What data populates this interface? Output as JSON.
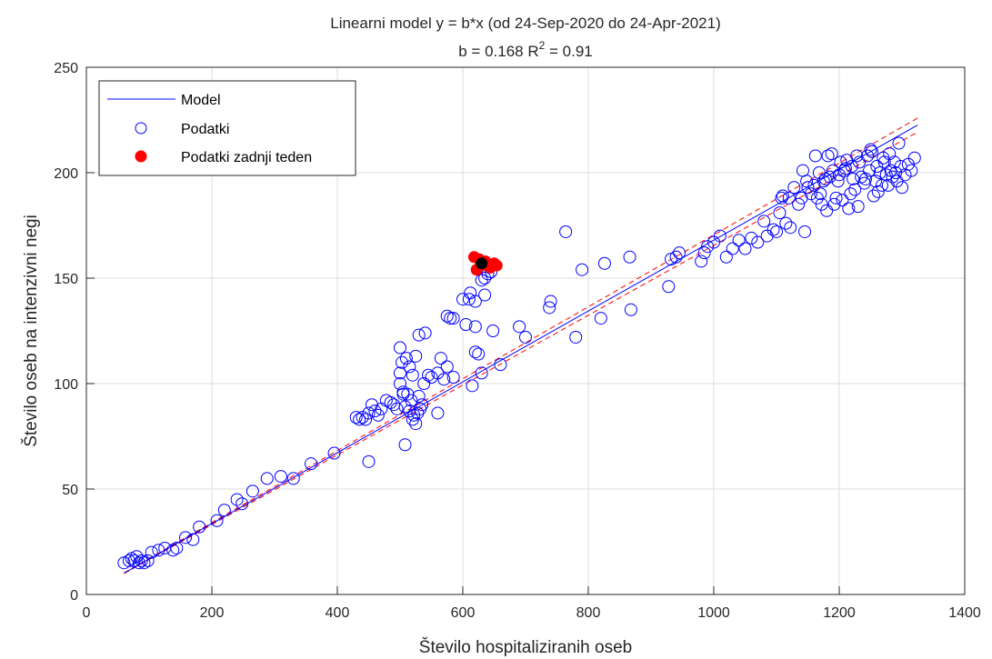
{
  "chart_data": {
    "type": "scatter",
    "title": "Linearni model y = b*x (od 24-Sep-2020 do 24-Apr-2021)",
    "subtitle": {
      "prefix": "b = 0.168 R",
      "superscript": "2",
      "suffix": " = 0.91"
    },
    "xlabel": "Število hospitaliziranih oseb",
    "ylabel": "Število oseb na intenzivni negi",
    "xlim": [
      0,
      1400
    ],
    "ylim": [
      0,
      250
    ],
    "xticks": [
      0,
      200,
      400,
      600,
      800,
      1000,
      1200,
      1400
    ],
    "yticks": [
      0,
      50,
      100,
      150,
      200,
      250
    ],
    "grid": true,
    "legend_position": "top-left",
    "legend": [
      "Model",
      "Podatki",
      "Podatki zadnji teden"
    ],
    "colors": {
      "model": "#0000ff",
      "ci": "#ff0000",
      "data": "#0000ff",
      "last_week": "#ff0000",
      "latest": "#000000"
    },
    "model": {
      "slope": 0.168,
      "ci_low": 0.1655,
      "ci_high": 0.1705,
      "x_range": [
        60,
        1325
      ]
    },
    "series": [
      {
        "name": "Podatki",
        "marker": "open-circle",
        "points": [
          [
            60,
            15
          ],
          [
            68,
            16
          ],
          [
            72,
            17
          ],
          [
            76,
            16
          ],
          [
            80,
            18
          ],
          [
            84,
            15
          ],
          [
            88,
            16
          ],
          [
            92,
            15
          ],
          [
            98,
            16
          ],
          [
            104,
            20
          ],
          [
            115,
            21
          ],
          [
            125,
            22
          ],
          [
            138,
            21
          ],
          [
            144,
            22
          ],
          [
            158,
            27
          ],
          [
            170,
            26
          ],
          [
            180,
            32
          ],
          [
            208,
            35
          ],
          [
            220,
            40
          ],
          [
            240,
            45
          ],
          [
            248,
            43
          ],
          [
            265,
            49
          ],
          [
            288,
            55
          ],
          [
            310,
            56
          ],
          [
            330,
            55
          ],
          [
            358,
            62
          ],
          [
            395,
            67
          ],
          [
            450,
            63
          ],
          [
            430,
            84
          ],
          [
            435,
            83
          ],
          [
            440,
            84
          ],
          [
            445,
            83
          ],
          [
            450,
            86
          ],
          [
            455,
            90
          ],
          [
            460,
            87
          ],
          [
            465,
            85
          ],
          [
            470,
            88
          ],
          [
            478,
            92
          ],
          [
            485,
            91
          ],
          [
            490,
            90
          ],
          [
            495,
            88
          ],
          [
            500,
            100
          ],
          [
            500,
            105
          ],
          [
            503,
            110
          ],
          [
            505,
            95
          ],
          [
            508,
            89
          ],
          [
            512,
            95
          ],
          [
            515,
            87
          ],
          [
            518,
            92
          ],
          [
            520,
            83
          ],
          [
            522,
            85
          ],
          [
            525,
            81
          ],
          [
            528,
            86
          ],
          [
            530,
            94
          ],
          [
            532,
            88
          ],
          [
            535,
            90
          ],
          [
            538,
            100
          ],
          [
            508,
            71
          ],
          [
            560,
            86
          ],
          [
            500,
            117
          ],
          [
            505,
            96
          ],
          [
            510,
            112
          ],
          [
            515,
            108
          ],
          [
            520,
            104
          ],
          [
            525,
            113
          ],
          [
            530,
            123
          ],
          [
            540,
            124
          ],
          [
            545,
            104
          ],
          [
            550,
            103
          ],
          [
            560,
            105
          ],
          [
            565,
            112
          ],
          [
            570,
            102
          ],
          [
            575,
            108
          ],
          [
            580,
            131
          ],
          [
            585,
            103
          ],
          [
            575,
            132
          ],
          [
            585,
            131
          ],
          [
            600,
            140
          ],
          [
            605,
            128
          ],
          [
            612,
            143
          ],
          [
            615,
            99
          ],
          [
            620,
            115
          ],
          [
            625,
            114
          ],
          [
            630,
            105
          ],
          [
            630,
            149
          ],
          [
            635,
            150
          ],
          [
            640,
            152
          ],
          [
            645,
            153
          ],
          [
            620,
            139
          ],
          [
            610,
            140
          ],
          [
            648,
            125
          ],
          [
            660,
            109
          ],
          [
            690,
            127
          ],
          [
            700,
            122
          ],
          [
            620,
            127
          ],
          [
            635,
            142
          ],
          [
            738,
            136
          ],
          [
            740,
            139
          ],
          [
            764,
            172
          ],
          [
            780,
            122
          ],
          [
            790,
            154
          ],
          [
            820,
            131
          ],
          [
            826,
            157
          ],
          [
            866,
            160
          ],
          [
            868,
            135
          ],
          [
            928,
            146
          ],
          [
            932,
            159
          ],
          [
            940,
            160
          ],
          [
            945,
            162
          ],
          [
            980,
            158
          ],
          [
            985,
            162
          ],
          [
            990,
            165
          ],
          [
            1000,
            167
          ],
          [
            1010,
            170
          ],
          [
            1020,
            160
          ],
          [
            1030,
            164
          ],
          [
            1040,
            168
          ],
          [
            1050,
            164
          ],
          [
            1060,
            169
          ],
          [
            1070,
            167
          ],
          [
            1080,
            177
          ],
          [
            1085,
            170
          ],
          [
            1095,
            173
          ],
          [
            1100,
            172
          ],
          [
            1105,
            181
          ],
          [
            1108,
            188
          ],
          [
            1110,
            189
          ],
          [
            1115,
            176
          ],
          [
            1120,
            188
          ],
          [
            1122,
            174
          ],
          [
            1128,
            193
          ],
          [
            1135,
            185
          ],
          [
            1140,
            188
          ],
          [
            1142,
            201
          ],
          [
            1145,
            172
          ],
          [
            1148,
            196
          ],
          [
            1150,
            193
          ],
          [
            1155,
            190
          ],
          [
            1160,
            194
          ],
          [
            1162,
            208
          ],
          [
            1165,
            188
          ],
          [
            1168,
            200
          ],
          [
            1170,
            190
          ],
          [
            1172,
            185
          ],
          [
            1175,
            196
          ],
          [
            1178,
            197
          ],
          [
            1180,
            182
          ],
          [
            1182,
            208
          ],
          [
            1185,
            198
          ],
          [
            1188,
            209
          ],
          [
            1190,
            201
          ],
          [
            1192,
            185
          ],
          [
            1195,
            188
          ],
          [
            1198,
            196
          ],
          [
            1200,
            199
          ],
          [
            1202,
            205
          ],
          [
            1205,
            187
          ],
          [
            1208,
            201
          ],
          [
            1210,
            202
          ],
          [
            1212,
            206
          ],
          [
            1215,
            183
          ],
          [
            1218,
            190
          ],
          [
            1220,
            203
          ],
          [
            1222,
            197
          ],
          [
            1225,
            192
          ],
          [
            1228,
            208
          ],
          [
            1230,
            184
          ],
          [
            1232,
            205
          ],
          [
            1235,
            198
          ],
          [
            1240,
            195
          ],
          [
            1242,
            197
          ],
          [
            1245,
            208
          ],
          [
            1248,
            201
          ],
          [
            1250,
            211
          ],
          [
            1252,
            210
          ],
          [
            1255,
            189
          ],
          [
            1258,
            196
          ],
          [
            1260,
            203
          ],
          [
            1262,
            191
          ],
          [
            1265,
            200
          ],
          [
            1268,
            194
          ],
          [
            1270,
            207
          ],
          [
            1272,
            205
          ],
          [
            1275,
            199
          ],
          [
            1278,
            194
          ],
          [
            1280,
            209
          ],
          [
            1282,
            201
          ],
          [
            1285,
            198
          ],
          [
            1288,
            205
          ],
          [
            1290,
            200
          ],
          [
            1292,
            196
          ],
          [
            1295,
            214
          ],
          [
            1298,
            203
          ],
          [
            1300,
            193
          ],
          [
            1305,
            199
          ],
          [
            1310,
            204
          ],
          [
            1315,
            201
          ],
          [
            1320,
            207
          ]
        ]
      },
      {
        "name": "Podatki zadnji teden",
        "marker": "filled-circle",
        "points": [
          [
            618,
            160
          ],
          [
            622,
            154
          ],
          [
            626,
            159
          ],
          [
            630,
            156
          ],
          [
            636,
            158
          ],
          [
            644,
            155
          ],
          [
            650,
            157
          ],
          [
            654,
            156
          ]
        ]
      },
      {
        "name": "latest",
        "marker": "filled-circle",
        "points": [
          [
            630,
            157
          ]
        ]
      }
    ]
  }
}
